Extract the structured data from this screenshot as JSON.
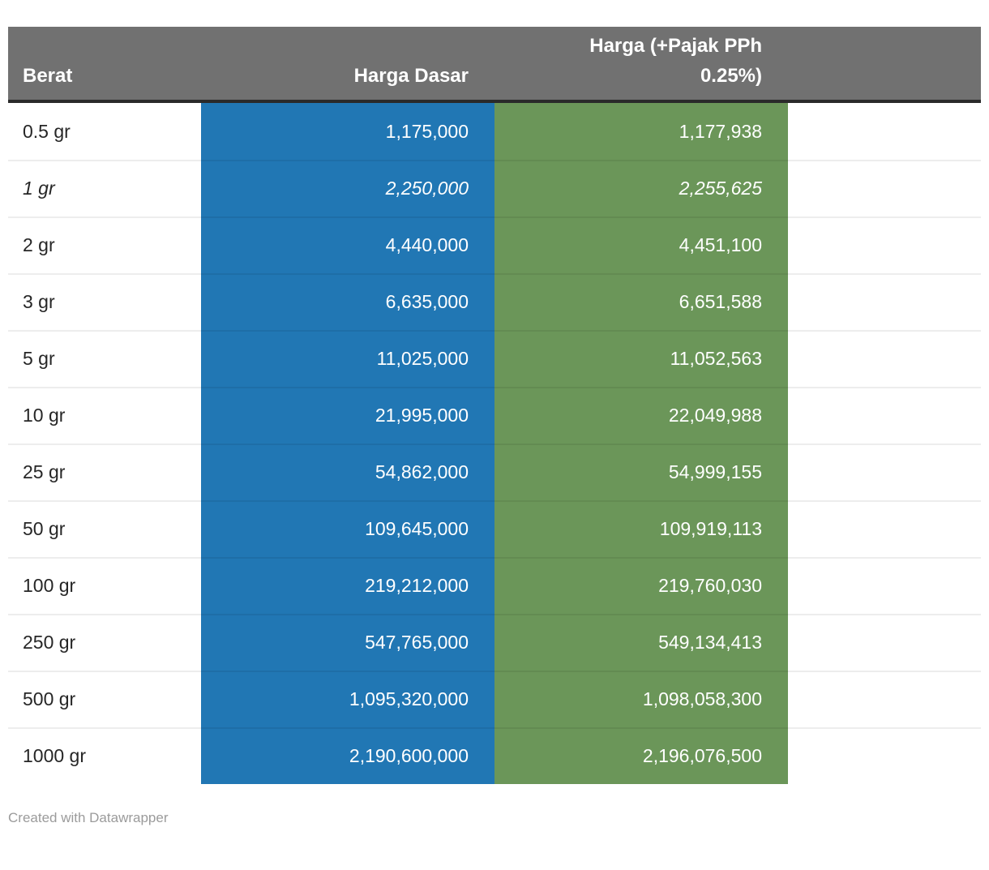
{
  "table": {
    "columns": [
      {
        "label": "Berat"
      },
      {
        "label": "Harga Dasar"
      },
      {
        "label": "Harga (+Pajak PPh 0.25%)"
      }
    ],
    "rows": [
      {
        "berat": "0.5 gr",
        "harga_dasar": "1,175,000",
        "harga_pajak": "1,177,938",
        "italic": false
      },
      {
        "berat": "1 gr",
        "harga_dasar": "2,250,000",
        "harga_pajak": "2,255,625",
        "italic": true
      },
      {
        "berat": "2 gr",
        "harga_dasar": "4,440,000",
        "harga_pajak": "4,451,100",
        "italic": false
      },
      {
        "berat": "3 gr",
        "harga_dasar": "6,635,000",
        "harga_pajak": "6,651,588",
        "italic": false
      },
      {
        "berat": "5 gr",
        "harga_dasar": "11,025,000",
        "harga_pajak": "11,052,563",
        "italic": false
      },
      {
        "berat": "10 gr",
        "harga_dasar": "21,995,000",
        "harga_pajak": "22,049,988",
        "italic": false
      },
      {
        "berat": "25 gr",
        "harga_dasar": "54,862,000",
        "harga_pajak": "54,999,155",
        "italic": false
      },
      {
        "berat": "50 gr",
        "harga_dasar": "109,645,000",
        "harga_pajak": "109,919,113",
        "italic": false
      },
      {
        "berat": "100 gr",
        "harga_dasar": "219,212,000",
        "harga_pajak": "219,760,030",
        "italic": false
      },
      {
        "berat": "250 gr",
        "harga_dasar": "547,765,000",
        "harga_pajak": "549,134,413",
        "italic": false
      },
      {
        "berat": "500 gr",
        "harga_dasar": "1,095,320,000",
        "harga_pajak": "1,098,058,300",
        "italic": false
      },
      {
        "berat": "1000 gr",
        "harga_dasar": "2,190,600,000",
        "harga_pajak": "2,196,076,500",
        "italic": false
      }
    ]
  },
  "footer": {
    "credit": "Created with Datawrapper"
  },
  "colors": {
    "header_bg": "#717171",
    "header_border": "#2a2a2a",
    "column_blue": "#2177b4",
    "column_green": "#6b9659",
    "body_text": "#262626",
    "value_text": "#ffffff",
    "footer_text": "#9b9b9b"
  },
  "chart_data": {
    "type": "table",
    "title": "",
    "columns": [
      "Berat",
      "Harga Dasar",
      "Harga (+Pajak PPh 0.25%)"
    ],
    "rows": [
      [
        "0.5 gr",
        1175000,
        1177938
      ],
      [
        "1 gr",
        2250000,
        2255625
      ],
      [
        "2 gr",
        4440000,
        4451100
      ],
      [
        "3 gr",
        6635000,
        6651588
      ],
      [
        "5 gr",
        11025000,
        11052563
      ],
      [
        "10 gr",
        21995000,
        22049988
      ],
      [
        "25 gr",
        54862000,
        54999155
      ],
      [
        "50 gr",
        109645000,
        109919113
      ],
      [
        "100 gr",
        219212000,
        219760030
      ],
      [
        "250 gr",
        547765000,
        549134413
      ],
      [
        "500 gr",
        1095320000,
        1098058300
      ],
      [
        "1000 gr",
        2190600000,
        2196076500
      ]
    ],
    "layout_hints": {
      "highlighted_columns": {
        "Harga Dasar": "#2177b4",
        "Harga (+Pajak PPh 0.25%)": "#6b9659"
      },
      "italic_rows": [
        "1 gr"
      ],
      "footer": "Created with Datawrapper"
    }
  }
}
